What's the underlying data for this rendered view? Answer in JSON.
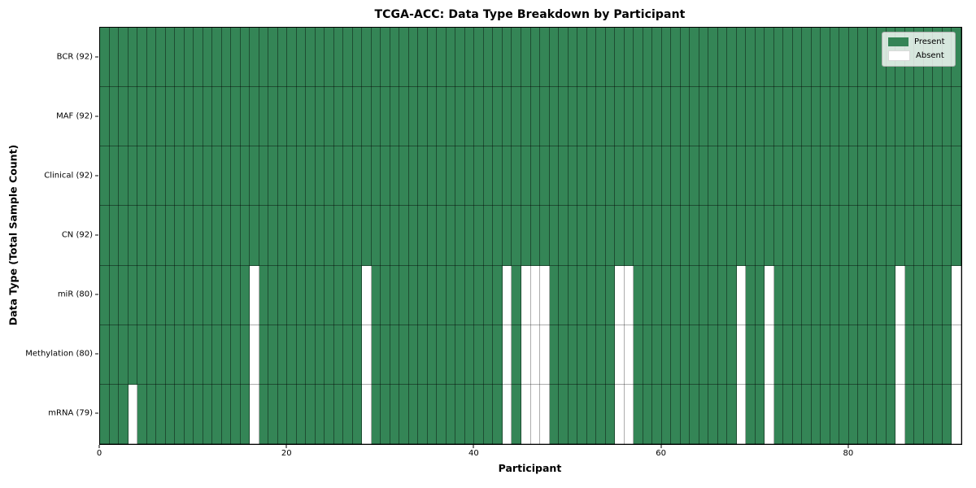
{
  "chart_data": {
    "type": "heatmap",
    "title": "TCGA-ACC: Data Type Breakdown by Participant",
    "xlabel": "Participant",
    "ylabel": "Data Type (Total Sample Count)",
    "x_ticks": [
      0,
      20,
      40,
      60,
      80
    ],
    "x_range": [
      0,
      92
    ],
    "n_participants": 92,
    "grid": true,
    "legend": {
      "position": "upper right",
      "items": [
        {
          "label": "Present",
          "color": "#348556"
        },
        {
          "label": "Absent",
          "color": "#ffffff"
        }
      ]
    },
    "rows": [
      {
        "label": "BCR (92)",
        "data_type": "BCR",
        "total": 92,
        "absent_participants": []
      },
      {
        "label": "MAF (92)",
        "data_type": "MAF",
        "total": 92,
        "absent_participants": []
      },
      {
        "label": "Clinical (92)",
        "data_type": "Clinical",
        "total": 92,
        "absent_participants": []
      },
      {
        "label": "CN (92)",
        "data_type": "CN",
        "total": 92,
        "absent_participants": []
      },
      {
        "label": "miR (80)",
        "data_type": "miR",
        "total": 80,
        "absent_participants": [
          16,
          28,
          43,
          45,
          46,
          47,
          55,
          56,
          68,
          71,
          85,
          91
        ]
      },
      {
        "label": "Methylation (80)",
        "data_type": "Methylation",
        "total": 80,
        "absent_participants": [
          16,
          28,
          43,
          45,
          46,
          47,
          55,
          56,
          68,
          71,
          85,
          91
        ]
      },
      {
        "label": "mRNA (79)",
        "data_type": "mRNA",
        "total": 79,
        "absent_participants": [
          3,
          16,
          28,
          43,
          45,
          46,
          47,
          55,
          56,
          68,
          71,
          85,
          91
        ]
      }
    ],
    "colors": {
      "present": "#348556",
      "absent": "#ffffff",
      "plot_border": "#000000"
    }
  }
}
